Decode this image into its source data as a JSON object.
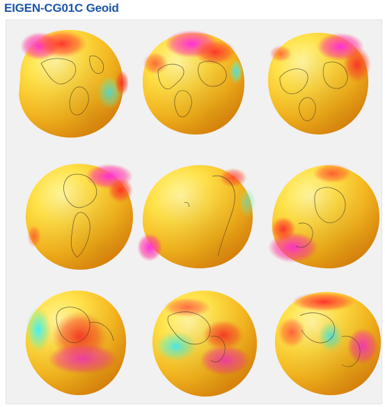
{
  "header": {
    "title": "EIGEN-CG01C Geoid"
  },
  "figure": {
    "description_label": "",
    "globes": [
      {
        "view": "view-1",
        "hotspots": [
          {
            "kind": "magenta"
          },
          {
            "kind": "red"
          },
          {
            "kind": "cyan"
          }
        ]
      },
      {
        "view": "view-2",
        "hotspots": [
          {
            "kind": "magenta"
          },
          {
            "kind": "red"
          },
          {
            "kind": "cyan"
          }
        ]
      },
      {
        "view": "view-3",
        "hotspots": [
          {
            "kind": "magenta"
          },
          {
            "kind": "red"
          }
        ]
      },
      {
        "view": "view-4",
        "hotspots": [
          {
            "kind": "magenta"
          },
          {
            "kind": "red"
          }
        ]
      },
      {
        "view": "view-5",
        "hotspots": [
          {
            "kind": "magenta"
          },
          {
            "kind": "red"
          }
        ]
      },
      {
        "view": "view-6",
        "hotspots": [
          {
            "kind": "magenta"
          },
          {
            "kind": "red"
          }
        ]
      },
      {
        "view": "view-7",
        "hotspots": [
          {
            "kind": "magenta"
          },
          {
            "kind": "red"
          },
          {
            "kind": "cyan"
          }
        ]
      },
      {
        "view": "view-8",
        "hotspots": [
          {
            "kind": "magenta"
          },
          {
            "kind": "red"
          },
          {
            "kind": "cyan"
          }
        ]
      },
      {
        "view": "view-9",
        "hotspots": [
          {
            "kind": "magenta"
          },
          {
            "kind": "red"
          },
          {
            "kind": "cyan"
          }
        ]
      }
    ],
    "colors": {
      "surface_light": "#fff36a",
      "surface_mid": "#fbcf2c",
      "surface_dark": "#e89a14",
      "red": "#ff2d2d",
      "magenta": "#ff2bdf",
      "cyan": "#34e7ff",
      "outline": "#2a2a2a"
    }
  }
}
